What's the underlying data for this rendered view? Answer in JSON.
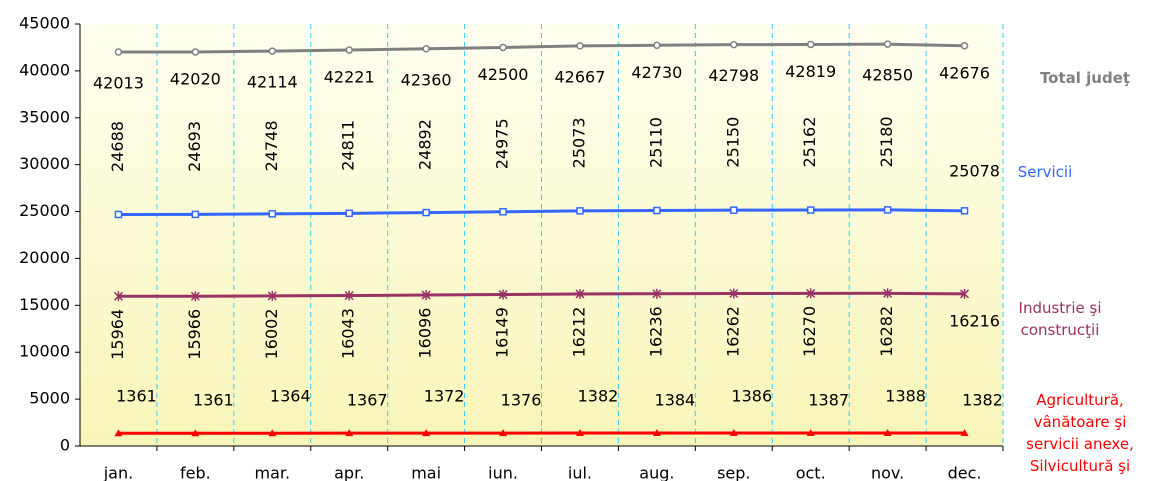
{
  "chart_data": {
    "type": "line",
    "categories": [
      "jan.",
      "feb.",
      "mar.",
      "apr.",
      "mai",
      "iun.",
      "iul.",
      "aug.",
      "sep.",
      "oct.",
      "nov.",
      "dec."
    ],
    "series": [
      {
        "name": "Total judeţ",
        "color": "#808080",
        "marker": "circle",
        "values": [
          42013,
          42020,
          42114,
          42221,
          42360,
          42500,
          42667,
          42730,
          42798,
          42819,
          42850,
          42676
        ]
      },
      {
        "name": "Servicii",
        "color": "#3366ff",
        "marker": "square",
        "values": [
          24688,
          24693,
          24748,
          24811,
          24892,
          24975,
          25073,
          25110,
          25150,
          25162,
          25180,
          25078
        ]
      },
      {
        "name": "Industrie şi construcţii",
        "color": "#993366",
        "marker": "star",
        "values": [
          15964,
          15966,
          16002,
          16043,
          16096,
          16149,
          16212,
          16236,
          16262,
          16270,
          16282,
          16216
        ]
      },
      {
        "name": "Agricultură, vânătoare şi servicii anexe, Silvicultură şi Pescuit",
        "color": "#ff0000",
        "marker": "triangle",
        "values": [
          1361,
          1361,
          1364,
          1367,
          1372,
          1376,
          1382,
          1384,
          1386,
          1387,
          1388,
          1382
        ]
      }
    ],
    "ylim": [
      0,
      45000
    ],
    "yticks": [
      0,
      5000,
      10000,
      15000,
      20000,
      25000,
      30000,
      35000,
      40000,
      45000
    ],
    "grid": "vertical"
  }
}
